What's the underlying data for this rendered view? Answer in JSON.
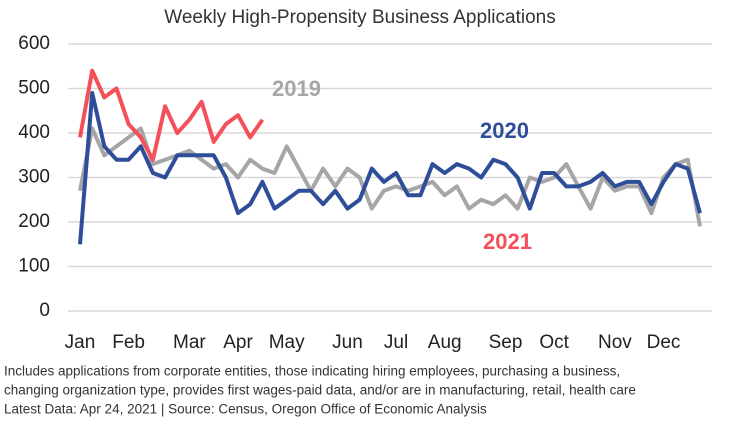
{
  "chart_data": {
    "type": "line",
    "title": "Weekly High-Propensity Business Applications",
    "categories": [
      "Jan",
      null,
      null,
      null,
      "Feb",
      null,
      null,
      null,
      null,
      "Mar",
      null,
      null,
      null,
      "Apr",
      null,
      null,
      null,
      "May",
      null,
      null,
      null,
      null,
      "Jun",
      null,
      null,
      null,
      "Jul",
      null,
      null,
      null,
      "Aug",
      null,
      null,
      null,
      null,
      "Sep",
      null,
      null,
      null,
      "Oct",
      null,
      null,
      null,
      null,
      "Nov",
      null,
      null,
      null,
      "Dec",
      null,
      null,
      null
    ],
    "series": [
      {
        "name": "2019",
        "color": "#a6a6a6",
        "values": [
          270,
          410,
          350,
          370,
          390,
          410,
          330,
          340,
          350,
          360,
          340,
          320,
          330,
          300,
          340,
          320,
          310,
          370,
          320,
          270,
          320,
          280,
          320,
          300,
          230,
          270,
          280,
          270,
          280,
          290,
          260,
          280,
          230,
          250,
          240,
          260,
          230,
          300,
          290,
          300,
          330,
          280,
          230,
          300,
          270,
          280,
          280,
          220,
          300,
          330,
          340,
          190
        ]
      },
      {
        "name": "2020",
        "color": "#2f4e9a",
        "values": [
          150,
          490,
          370,
          340,
          340,
          370,
          310,
          300,
          350,
          350,
          350,
          350,
          300,
          220,
          240,
          290,
          230,
          250,
          270,
          270,
          240,
          270,
          230,
          250,
          320,
          290,
          310,
          260,
          260,
          330,
          310,
          330,
          320,
          300,
          340,
          330,
          300,
          230,
          310,
          310,
          280,
          280,
          290,
          310,
          280,
          290,
          290,
          240,
          290,
          330,
          320,
          220
        ]
      },
      {
        "name": "2021",
        "color": "#f4505a",
        "values": [
          390,
          540,
          480,
          500,
          420,
          390,
          340,
          460,
          400,
          430,
          470,
          380,
          420,
          440,
          390,
          430,
          null,
          null,
          null,
          null,
          null,
          null,
          null,
          null,
          null,
          null,
          null,
          null,
          null,
          null,
          null,
          null,
          null,
          null,
          null,
          null,
          null,
          null,
          null,
          null,
          null,
          null,
          null,
          null,
          null,
          null,
          null,
          null,
          null,
          null,
          null,
          null
        ]
      }
    ],
    "ylim": [
      0,
      600
    ],
    "yticks": [
      0,
      100,
      200,
      300,
      400,
      500,
      600
    ],
    "grid": true,
    "notes": [
      "Includes applications from corporate entities, those indicating hiring employees, purchasing a business,",
      "changing organization type, provides first wages-paid data, and/or are in manufacturing, retail, health care",
      "Latest Data: Apr 24, 2021  |  Source: Census, Oregon Office of Economic Analysis"
    ]
  }
}
